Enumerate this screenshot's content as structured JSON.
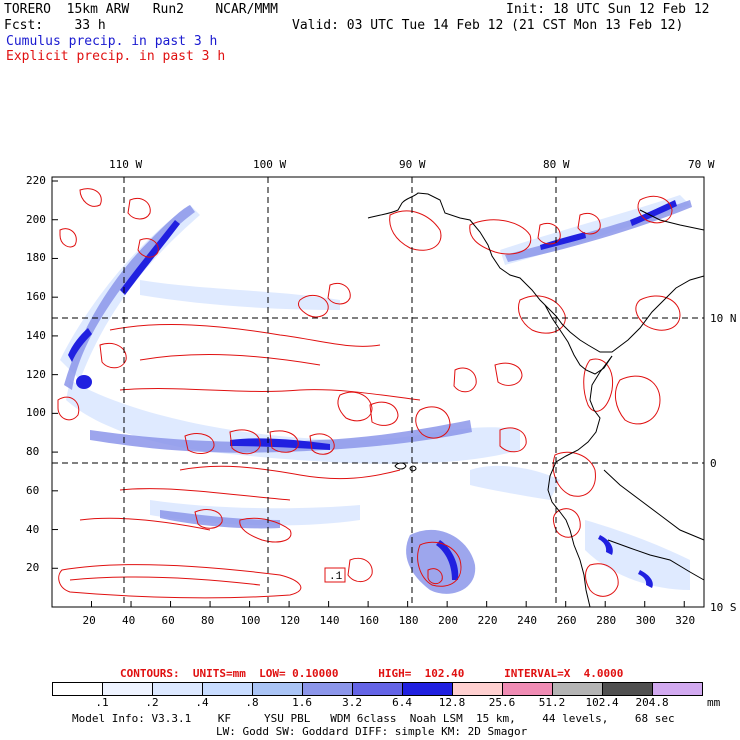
{
  "header": {
    "run_name": "TORERO  15km ARW   Run2    NCAR/MMM",
    "init": "Init: 18 UTC Sun 12 Feb 12",
    "fcst": "Fcst:    33 h",
    "valid": "Valid: 03 UTC Tue 14 Feb 12 (21 CST Mon 13 Feb 12)",
    "legend_cumulus": "Cumulus precip. in past 3 h",
    "legend_explicit": "Explicit precip. in past 3 h"
  },
  "map": {
    "top_lon_labels": [
      "110 W",
      "100 W",
      "90 W",
      "80 W",
      "70 W"
    ],
    "right_lat_labels": [
      "10 N",
      "0",
      "10 S"
    ],
    "left_ticks": [
      "220",
      "200",
      "180",
      "160",
      "140",
      "120",
      "100",
      "80",
      "60",
      "40",
      "20"
    ],
    "bottom_ticks": [
      "20",
      "40",
      "60",
      "80",
      "100",
      "120",
      "140",
      "160",
      "180",
      "200",
      "220",
      "240",
      "260",
      "280",
      "300",
      "320"
    ],
    "marker_label": ".1",
    "colors": {
      "cumulus": "#3a3ae0",
      "explicit": "#e01010",
      "grid": "#000000"
    }
  },
  "contours_line": "CONTOURS:  UNITS=mm  LOW= 0.10000      HIGH=  102.40      INTERVAL=X  4.0000",
  "colorbar": {
    "labels": [
      ".1",
      ".2",
      ".4",
      ".8",
      "1.6",
      "3.2",
      "6.4",
      "12.8",
      "25.6",
      "51.2",
      "102.4",
      "204.8"
    ],
    "unit": "mm",
    "colors": [
      "#ffffff",
      "#eef3ff",
      "#dce8ff",
      "#c8dcff",
      "#aac4f5",
      "#8c96ea",
      "#6464e6",
      "#2020e0",
      "#ffd0d0",
      "#f08cb4",
      "#b4b4b4",
      "#505050",
      "#d2aaf0"
    ]
  },
  "footer": {
    "line1": "Model Info: V3.3.1    KF     YSU PBL   WDM 6class  Noah LSM  15 km,    44 levels,    68 sec",
    "line2": "LW: Godd SW: Goddard DIFF: simple KM: 2D Smagor"
  }
}
